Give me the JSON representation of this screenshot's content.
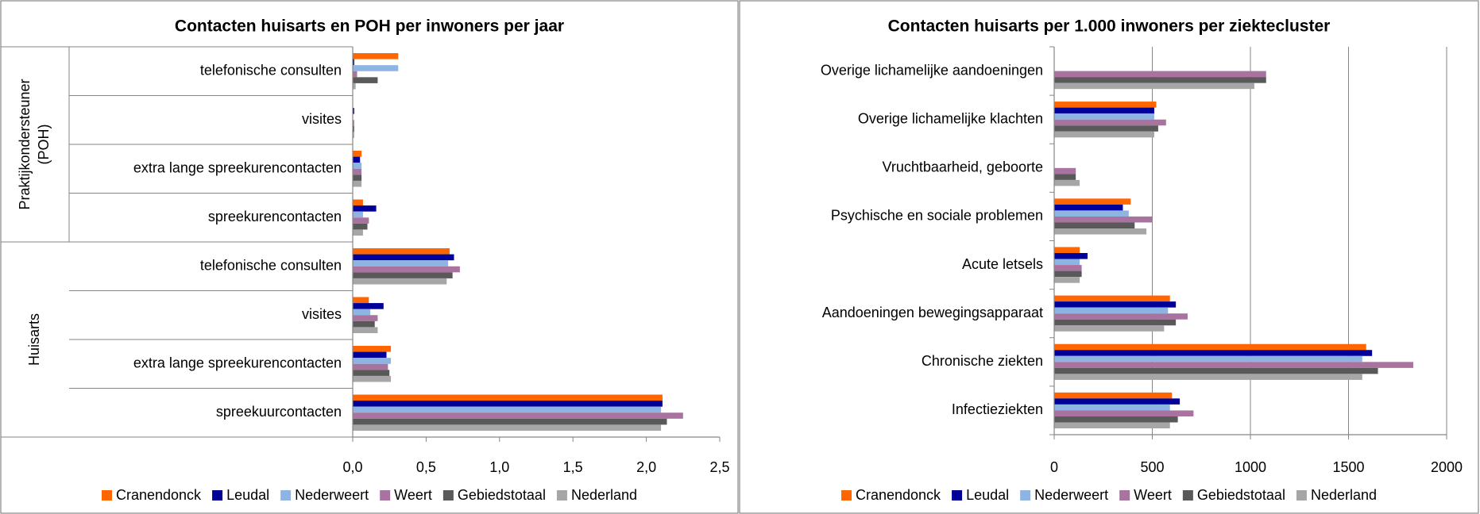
{
  "chart_data": [
    {
      "type": "bar",
      "orientation": "horizontal",
      "title": "Contacten huisarts en POH per inwoners per jaar",
      "groups": [
        [
          "Praktijkondersteuner",
          "(POH)"
        ],
        [
          "Huisarts"
        ]
      ],
      "categories": [
        "telefonische consulten",
        "visites",
        "extra lange spreekurencontacten",
        "spreekurencontacten",
        "telefonische consulten",
        "visites",
        "extra lange spreekurencontacten",
        "spreekuurcontacten"
      ],
      "series": [
        {
          "name": "Cranendonck",
          "color": "#ff6600",
          "values": [
            0.31,
            0,
            0.06,
            0.07,
            0.66,
            0.11,
            0.26,
            2.11
          ]
        },
        {
          "name": "Leudal",
          "color": "#000099",
          "values": [
            0.01,
            0.01,
            0.05,
            0.16,
            0.69,
            0.21,
            0.23,
            2.11
          ]
        },
        {
          "name": "Nederweert",
          "color": "#8db4e2",
          "values": [
            0.31,
            0,
            0.06,
            0.07,
            0.65,
            0.12,
            0.26,
            2.1
          ]
        },
        {
          "name": "Weert",
          "color": "#a9739f",
          "values": [
            0.03,
            0.01,
            0.06,
            0.11,
            0.73,
            0.17,
            0.24,
            2.25
          ]
        },
        {
          "name": "Gebiedstotaal",
          "color": "#595959",
          "values": [
            0.17,
            0.01,
            0.06,
            0.1,
            0.68,
            0.15,
            0.25,
            2.14
          ]
        },
        {
          "name": "Nederland",
          "color": "#a6a6a6",
          "values": [
            0.02,
            0.01,
            0.06,
            0.07,
            0.64,
            0.17,
            0.26,
            2.1
          ]
        }
      ],
      "xlim": [
        0,
        2.5
      ],
      "xticks": [
        {
          "value": 0,
          "label": "0,0"
        },
        {
          "value": 0.5,
          "label": "0,5"
        },
        {
          "value": 1,
          "label": "1,0"
        },
        {
          "value": 1.5,
          "label": "1,5"
        },
        {
          "value": 2,
          "label": "2,0"
        },
        {
          "value": 2.5,
          "label": "2,5"
        }
      ],
      "grid": false,
      "legend": "bottom"
    },
    {
      "type": "bar",
      "orientation": "horizontal",
      "title": "Contacten huisarts per 1.000 inwoners per ziektecluster",
      "categories": [
        "Overige lichamelijke aandoeningen",
        "Overige lichamelijke klachten",
        "Vruchtbaarheid, geboorte",
        "Psychische en sociale problemen",
        "Acute letsels",
        "Aandoeningen bewegingsapparaat",
        "Chronische ziekten",
        "Infectieziekten"
      ],
      "series": [
        {
          "name": "Cranendonck",
          "color": "#ff6600",
          "values": [
            0,
            520,
            0,
            390,
            130,
            590,
            1590,
            600
          ]
        },
        {
          "name": "Leudal",
          "color": "#000099",
          "values": [
            0,
            510,
            0,
            350,
            170,
            620,
            1620,
            640
          ]
        },
        {
          "name": "Nederweert",
          "color": "#8db4e2",
          "values": [
            0,
            510,
            0,
            380,
            130,
            580,
            1570,
            590
          ]
        },
        {
          "name": "Weert",
          "color": "#a9739f",
          "values": [
            1080,
            570,
            110,
            500,
            140,
            680,
            1830,
            710
          ]
        },
        {
          "name": "Gebiedstotaal",
          "color": "#595959",
          "values": [
            1080,
            530,
            110,
            410,
            140,
            620,
            1650,
            630
          ]
        },
        {
          "name": "Nederland",
          "color": "#a6a6a6",
          "values": [
            1020,
            510,
            130,
            470,
            130,
            560,
            1570,
            590
          ]
        }
      ],
      "xlim": [
        0,
        2000
      ],
      "xticks": [
        0,
        500,
        1000,
        1500,
        2000
      ],
      "grid": true,
      "legend": "bottom"
    }
  ]
}
